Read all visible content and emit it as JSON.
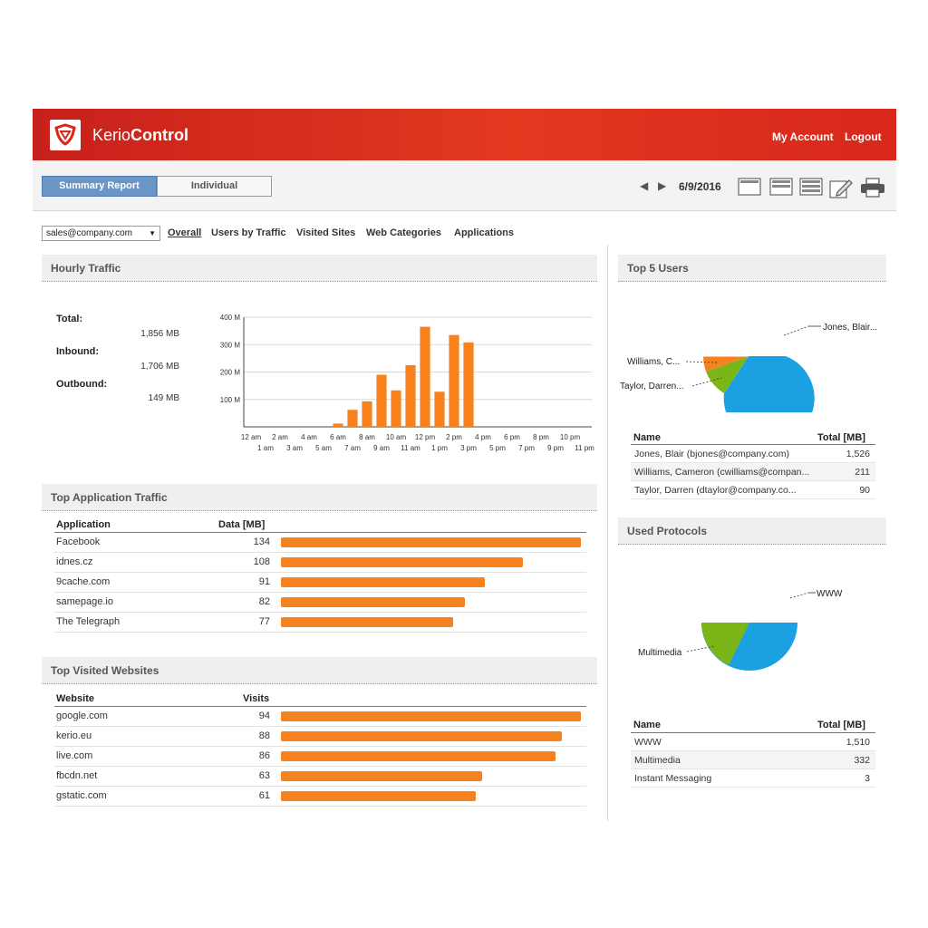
{
  "header": {
    "brand_light": "Kerio",
    "brand_bold": "Control",
    "my_account": "My Account",
    "logout": "Logout"
  },
  "toolbar": {
    "tabs": [
      "Summary Report",
      "Individual"
    ],
    "date": "6/9/2016"
  },
  "filters": {
    "user_select": "sales@company.com",
    "links": [
      "Overall",
      "Users by Traffic",
      "Visited Sites",
      "Web Categories",
      "Applications"
    ]
  },
  "hourly": {
    "title": "Hourly Traffic",
    "total_label": "Total:",
    "total_value": "1,856 MB",
    "inbound_label": "Inbound:",
    "inbound_value": "1,706 MB",
    "outbound_label": "Outbound:",
    "outbound_value": "149 MB"
  },
  "chart_data": {
    "type": "bar",
    "categories": [
      "12 am",
      "1 am",
      "2 am",
      "3 am",
      "4 am",
      "5 am",
      "6 am",
      "7 am",
      "8 am",
      "9 am",
      "10 am",
      "11 am",
      "12 pm",
      "1 pm",
      "2 pm",
      "3 pm",
      "4 pm",
      "5 pm",
      "6 pm",
      "7 pm",
      "8 pm",
      "9 pm",
      "10 pm",
      "11 pm"
    ],
    "values": [
      0,
      0,
      0,
      0,
      0,
      0,
      12,
      62,
      93,
      190,
      133,
      225,
      365,
      128,
      335,
      308,
      0,
      0,
      0,
      0,
      0,
      0,
      0,
      0
    ],
    "ylim": [
      0,
      400
    ],
    "yticks": [
      "100 M",
      "200 M",
      "300 M",
      "400 M"
    ],
    "ytick_values": [
      100,
      200,
      300,
      400
    ],
    "color": "#f5821f"
  },
  "apps": {
    "title": "Top Application Traffic",
    "col1": "Application",
    "col2": "Data [MB]",
    "rows": [
      {
        "name": "Facebook",
        "value": "134",
        "fraction": 1.0
      },
      {
        "name": "idnes.cz",
        "value": "108",
        "fraction": 0.806
      },
      {
        "name": "9cache.com",
        "value": "91",
        "fraction": 0.679
      },
      {
        "name": "samepage.io",
        "value": "82",
        "fraction": 0.612
      },
      {
        "name": "The Telegraph",
        "value": "77",
        "fraction": 0.575
      }
    ]
  },
  "sites": {
    "title": "Top Visited Websites",
    "col1": "Website",
    "col2": "Visits",
    "rows": [
      {
        "name": "google.com",
        "value": "94",
        "fraction": 1.0
      },
      {
        "name": "kerio.eu",
        "value": "88",
        "fraction": 0.936
      },
      {
        "name": "live.com",
        "value": "86",
        "fraction": 0.915
      },
      {
        "name": "fbcdn.net",
        "value": "63",
        "fraction": 0.67
      },
      {
        "name": "gstatic.com",
        "value": "61",
        "fraction": 0.649
      }
    ]
  },
  "top_users": {
    "title": "Top 5 Users",
    "pie_labels": [
      "Jones, Blair...",
      "Williams, C...",
      "Taylor, Darren..."
    ],
    "col1": "Name",
    "col2": "Total [MB]",
    "rows": [
      {
        "name": "Jones, Blair (bjones@company.com)",
        "value": "1,526"
      },
      {
        "name": "Williams, Cameron (cwilliams@compan...",
        "value": "211"
      },
      {
        "name": "Taylor, Darren (dtaylor@company.co...",
        "value": "90"
      }
    ]
  },
  "protocols": {
    "title": "Used Protocols",
    "pie_labels": [
      "WWW",
      "Multimedia"
    ],
    "col1": "Name",
    "col2": "Total [MB]",
    "rows": [
      {
        "name": "WWW",
        "value": "1,510"
      },
      {
        "name": "Multimedia",
        "value": "332"
      },
      {
        "name": "Instant Messaging",
        "value": "3"
      }
    ]
  },
  "colors": {
    "accent": "#d8271c",
    "bar": "#f5821f",
    "pie_blue": "#1ba1e2",
    "pie_green": "#7cb518",
    "pie_orange": "#f5821f",
    "tab_active": "#6b95c5"
  },
  "icons": [
    "shield-logo-icon",
    "prev-arrow-icon",
    "next-arrow-icon",
    "layout-1-icon",
    "layout-2-icon",
    "layout-3-icon",
    "edit-icon",
    "print-icon"
  ]
}
